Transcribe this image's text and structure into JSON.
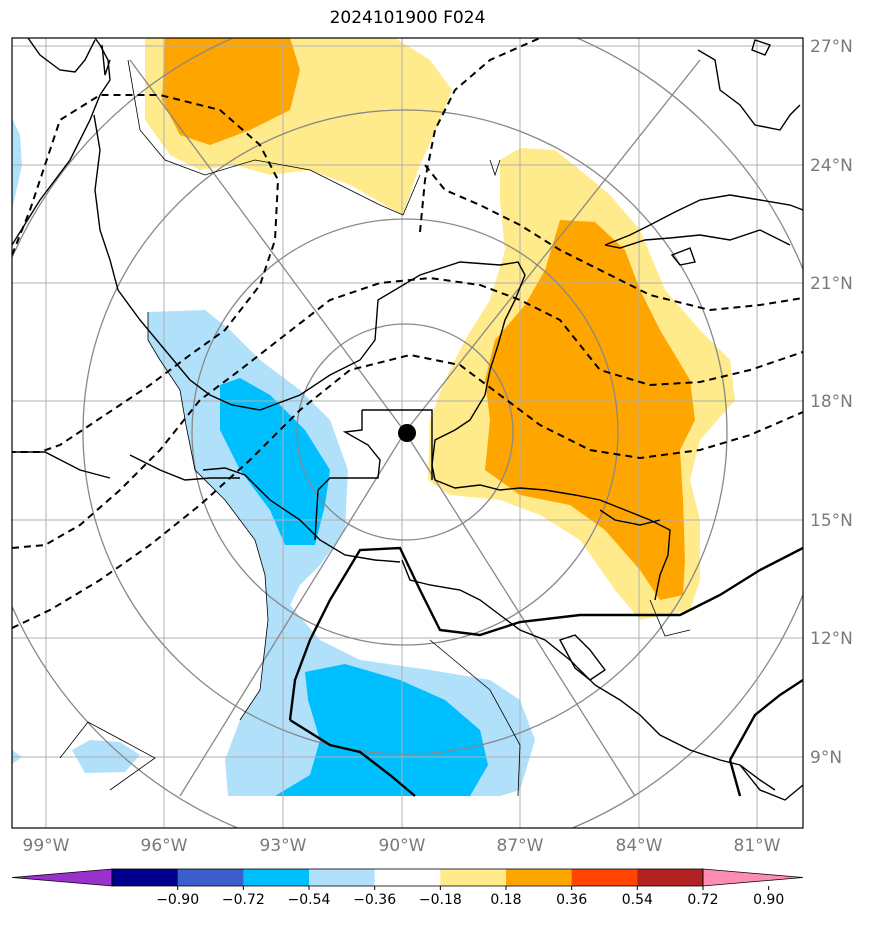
{
  "title": "2024101900 F024",
  "lat_labels": [
    "27°N",
    "24°N",
    "21°N",
    "18°N",
    "15°N",
    "12°N",
    "9°N"
  ],
  "lon_labels": [
    "99°W",
    "96°W",
    "93°W",
    "90°W",
    "87°W",
    "84°W",
    "81°W"
  ],
  "colorbar": {
    "labels": [
      "−0.90",
      "−0.72",
      "−0.54",
      "−0.36",
      "−0.18",
      "0.18",
      "0.36",
      "0.54",
      "0.72",
      "0.90"
    ],
    "colors": [
      "#9932cc",
      "#00008b",
      "#3a5fcd",
      "#00bfff",
      "#b0e0fa",
      "#ffffff",
      "#ffea8c",
      "#ffa500",
      "#ff4500",
      "#b22222",
      "#ff8cb4"
    ]
  },
  "storm_center": {
    "lat": 17.2,
    "lon": -89.9
  },
  "map_colors": {
    "positive_light": "#ffea8c",
    "positive_medium": "#ffa500",
    "negative_light": "#b0e0fa",
    "negative_medium": "#00bfff"
  }
}
